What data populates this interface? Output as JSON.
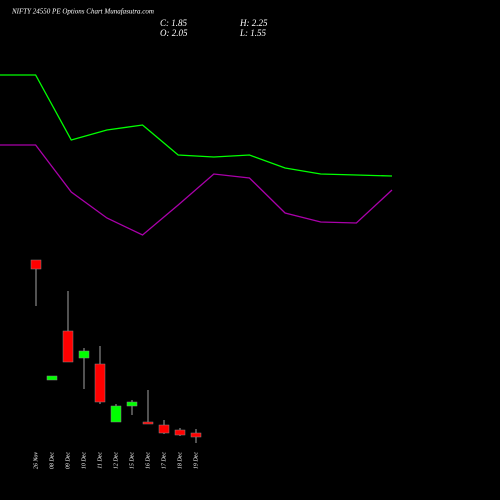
{
  "chart_data": [
    {
      "type": "line",
      "categories": [
        null,
        null,
        null,
        null,
        null,
        null,
        null,
        null,
        null,
        null,
        null,
        null
      ],
      "series": [
        {
          "color": "#00ff00",
          "values": [
            19.95,
            19.95,
            16.7,
            17.2,
            17.45,
            15.95,
            15.85,
            15.95,
            15.3,
            15.0,
            14.95,
            14.9
          ]
        },
        {
          "color": "#aa00aa",
          "values": [
            16.45,
            16.45,
            14.1,
            12.8,
            11.95,
            13.45,
            15.0,
            14.8,
            13.05,
            12.6,
            12.55,
            14.2
          ]
        }
      ],
      "ylim": [
        0,
        23.7
      ]
    },
    {
      "type": "candlestick",
      "title": "NIFTY 24550  PE Options  Chart Munafasutra.com",
      "ohlc_text": {
        "close": "C: 1.85",
        "open": "O: 2.05",
        "high": "H: 2.25",
        "low": "L: 1.55"
      },
      "categories": [
        "26 Nov",
        "08 Dec",
        "09 Dec",
        "10 Dec",
        "11 Dec",
        "12 Dec",
        "15 Dec",
        "16 Dec",
        "17 Dec",
        "18 Dec",
        "19 Dec"
      ],
      "open": [
        10.7,
        4.7,
        7.15,
        5.8,
        5.5,
        2.6,
        3.4,
        2.6,
        2.45,
        2.2,
        2.05
      ],
      "high": [
        10.7,
        4.9,
        9.15,
        6.3,
        6.4,
        3.5,
        3.7,
        4.2,
        2.7,
        2.3,
        2.25
      ],
      "low": [
        8.4,
        4.7,
        5.6,
        4.25,
        3.5,
        2.6,
        2.95,
        2.5,
        2.0,
        1.9,
        1.55
      ],
      "close": [
        10.25,
        4.9,
        5.6,
        6.15,
        3.6,
        3.4,
        3.6,
        2.5,
        2.05,
        1.95,
        1.85
      ],
      "up_color": "#00ff00",
      "down_color": "#ff0000",
      "ylim": [
        0,
        23.7
      ]
    }
  ]
}
